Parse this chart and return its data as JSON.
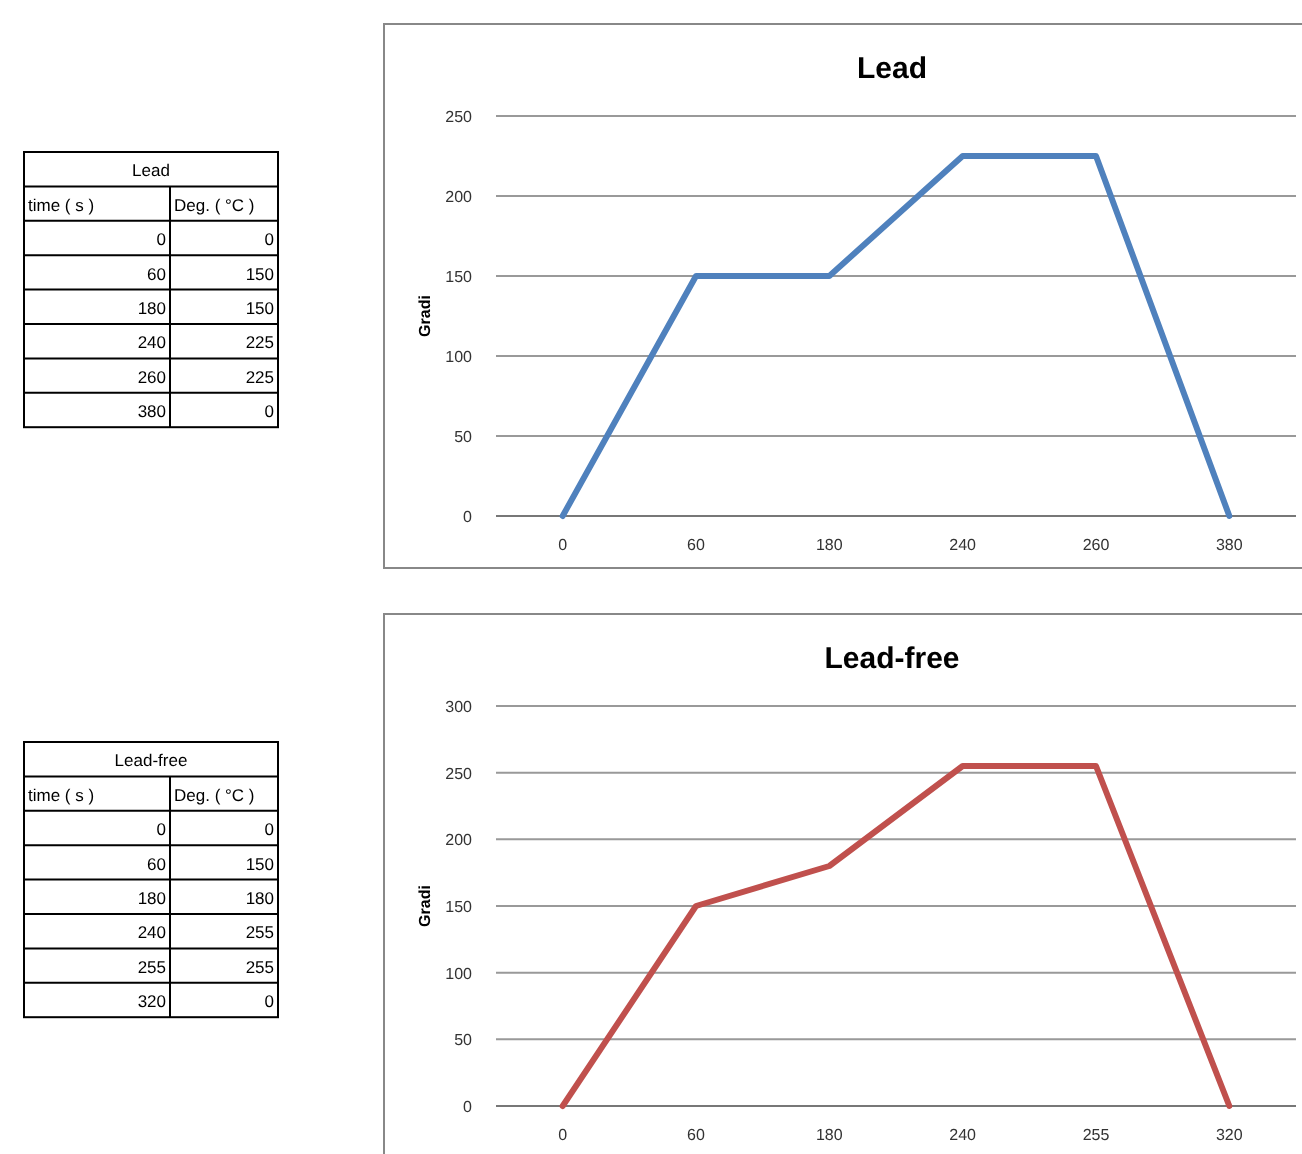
{
  "chart_data": [
    {
      "type": "other",
      "title": "Lead",
      "annotations": [
        "time ( s )",
        "Deg. ( °C )",
        "0",
        "0",
        "60",
        "150",
        "180",
        "150",
        "240",
        "225",
        "260",
        "225",
        "380",
        "0"
      ]
    },
    {
      "type": "line",
      "title": "Lead",
      "ylabel": "Gradi",
      "categories": [
        "0",
        "60",
        "180",
        "240",
        "260",
        "380"
      ],
      "series": [
        {
          "color": "#4f81bd",
          "values": [
            0,
            150,
            150,
            225,
            225,
            0
          ]
        }
      ],
      "ylim": [
        0,
        250
      ],
      "yticks": [
        0,
        50,
        100,
        150,
        200,
        250
      ],
      "grid": "y",
      "marker": "none",
      "line_style": "solid"
    },
    {
      "type": "other",
      "title": "Lead-free",
      "annotations": [
        "time ( s )",
        "Deg. ( °C )",
        "0",
        "0",
        "60",
        "150",
        "180",
        "180",
        "240",
        "255",
        "255",
        "255",
        "320",
        "0"
      ]
    },
    {
      "type": "line",
      "title": "Lead-free",
      "ylabel": "Gradi",
      "categories": [
        "0",
        "60",
        "180",
        "240",
        "255",
        "320"
      ],
      "series": [
        {
          "color": "#c0504d",
          "values": [
            0,
            150,
            180,
            255,
            255,
            0
          ]
        }
      ],
      "ylim": [
        0,
        300
      ],
      "yticks": [
        0,
        50,
        100,
        150,
        200,
        250,
        300
      ],
      "grid": "y",
      "marker": "none",
      "line_style": "solid"
    }
  ]
}
